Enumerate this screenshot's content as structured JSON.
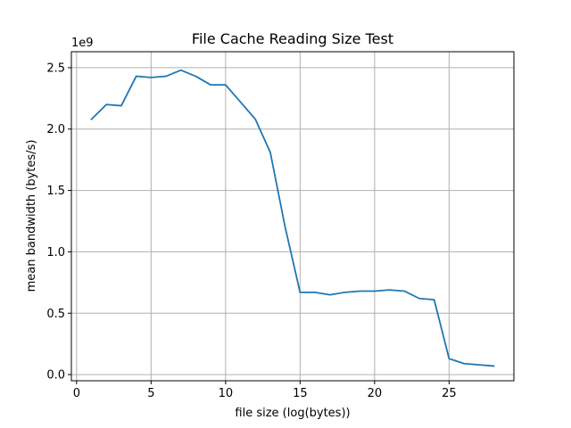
{
  "chart_data": {
    "type": "line",
    "title": "File Cache Reading Size Test",
    "xlabel": "file size (log(bytes))",
    "ylabel": "mean bandwidth (bytes/s)",
    "y_offset_label": "1e9",
    "xlim": [
      -0.35,
      29.35
    ],
    "ylim": [
      -0.05,
      2.63
    ],
    "x_ticks": [
      0,
      5,
      10,
      15,
      20,
      25
    ],
    "x_tick_labels": [
      "0",
      "5",
      "10",
      "15",
      "20",
      "25"
    ],
    "y_ticks": [
      0.0,
      0.5,
      1.0,
      1.5,
      2.0,
      2.5
    ],
    "y_tick_labels": [
      "0.0",
      "0.5",
      "1.0",
      "1.5",
      "2.0",
      "2.5"
    ],
    "grid": true,
    "series": [
      {
        "color": "#1f77b4",
        "x": [
          1,
          2,
          3,
          4,
          5,
          6,
          7,
          8,
          9,
          10,
          11,
          12,
          13,
          14,
          15,
          16,
          17,
          18,
          19,
          20,
          21,
          22,
          23,
          24,
          25,
          26,
          27,
          28
        ],
        "y": [
          2.08,
          2.2,
          2.19,
          2.43,
          2.42,
          2.43,
          2.48,
          2.43,
          2.36,
          2.36,
          2.22,
          2.08,
          1.81,
          1.2,
          0.67,
          0.67,
          0.65,
          0.67,
          0.68,
          0.68,
          0.69,
          0.68,
          0.62,
          0.61,
          0.13,
          0.09,
          0.08,
          0.07
        ]
      }
    ]
  }
}
